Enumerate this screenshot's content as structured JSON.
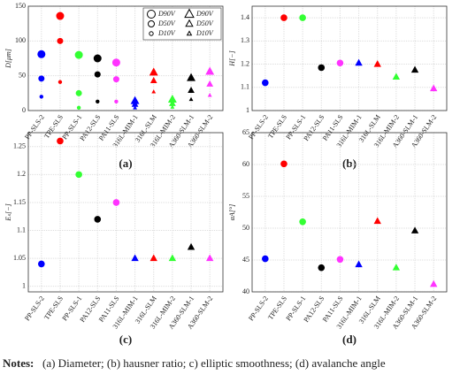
{
  "chart_data": [
    {
      "type": "scatter",
      "caption": "(a)",
      "ylabel": "D[μm]",
      "categories": [
        "PP-SLS-2",
        "TPE-SLS",
        "PP-SLS-1",
        "PA12-SLS",
        "PA11-SLS",
        "316L-MIM-1",
        "316L-SLM",
        "316L-MIM-2",
        "A360-SLM-1",
        "A360-SLM-2"
      ],
      "colors": [
        "#0000ff",
        "#ff0000",
        "#33ff33",
        "#000000",
        "#ff33ff",
        "#0000ff",
        "#ff0000",
        "#33ff33",
        "#000000",
        "#ff33ff"
      ],
      "markers": [
        "circle",
        "circle",
        "circle",
        "circle",
        "circle",
        "triangle",
        "triangle",
        "triangle",
        "triangle",
        "triangle"
      ],
      "series": [
        {
          "name": "D90V",
          "values": [
            81,
            136,
            80,
            75,
            69,
            14,
            55,
            16,
            47,
            56
          ]
        },
        {
          "name": "D50V",
          "values": [
            46,
            100,
            25,
            52,
            45,
            9,
            43,
            10,
            29,
            38
          ]
        },
        {
          "name": "D10V",
          "values": [
            20,
            41,
            4,
            13,
            13,
            4,
            27,
            5,
            16,
            22
          ]
        }
      ],
      "triangle_legend": [
        "D90V",
        "D50V",
        "D10V"
      ],
      "ylim": [
        0,
        150
      ],
      "yticks": [
        0,
        50,
        100,
        150
      ],
      "grid": true
    },
    {
      "type": "scatter",
      "caption": "(b)",
      "ylabel": "H[−]",
      "categories": [
        "PP-SLS-2",
        "TPE-SLS",
        "PP-SLS-1",
        "PA12-SLS",
        "PA11-SLS",
        "316L-MIM-1",
        "316L-SLM",
        "316L-MIM-2",
        "A360-SLM-1",
        "A360-SLM-2"
      ],
      "colors": [
        "#0000ff",
        "#ff0000",
        "#33ff33",
        "#000000",
        "#ff33ff",
        "#0000ff",
        "#ff0000",
        "#33ff33",
        "#000000",
        "#ff33ff"
      ],
      "markers": [
        "circle",
        "circle",
        "circle",
        "circle",
        "circle",
        "triangle",
        "triangle",
        "triangle",
        "triangle",
        "triangle"
      ],
      "series": [
        {
          "values": [
            1.12,
            1.4,
            1.4,
            1.185,
            1.205,
            1.205,
            1.2,
            1.145,
            1.175,
            1.095
          ]
        }
      ],
      "ylim": [
        1,
        1.45
      ],
      "yticks": [
        1,
        1.1,
        1.2,
        1.3,
        1.4
      ],
      "grid": true
    },
    {
      "type": "scatter",
      "caption": "(c)",
      "ylabel": "Eₛ[−]",
      "categories": [
        "PP-SLS-2",
        "TPE-SLS",
        "PP-SLS-1",
        "PA12-SLS",
        "PA11-SLS",
        "316L-MIM-1",
        "316L-SLM",
        "316L-MIM-2",
        "A360-SLM-1",
        "A360-SLM-2"
      ],
      "colors": [
        "#0000ff",
        "#ff0000",
        "#33ff33",
        "#000000",
        "#ff33ff",
        "#0000ff",
        "#ff0000",
        "#33ff33",
        "#000000",
        "#ff33ff"
      ],
      "markers": [
        "circle",
        "circle",
        "circle",
        "circle",
        "circle",
        "triangle",
        "triangle",
        "triangle",
        "triangle",
        "triangle"
      ],
      "series": [
        {
          "values": [
            1.04,
            1.26,
            1.2,
            1.12,
            1.15,
            1.05,
            1.05,
            1.05,
            1.07,
            1.05
          ]
        }
      ],
      "ylim": [
        0.99,
        1.275
      ],
      "yticks": [
        1,
        1.05,
        1.1,
        1.15,
        1.2,
        1.25
      ],
      "grid": true
    },
    {
      "type": "scatter",
      "caption": "(d)",
      "ylabel": "αA[°]",
      "categories": [
        "PP-SLS-2",
        "TPE-SLS",
        "PP-SLS-1",
        "PA12-SLS",
        "PA11-SLS",
        "316L-MIM-1",
        "316L-SLM",
        "316L-MIM-2",
        "A360-SLM-1",
        "A360-SLM-2"
      ],
      "colors": [
        "#0000ff",
        "#ff0000",
        "#33ff33",
        "#000000",
        "#ff33ff",
        "#0000ff",
        "#ff0000",
        "#33ff33",
        "#000000",
        "#ff33ff"
      ],
      "markers": [
        "circle",
        "circle",
        "circle",
        "circle",
        "circle",
        "triangle",
        "triangle",
        "triangle",
        "triangle",
        "triangle"
      ],
      "series": [
        {
          "values": [
            45.2,
            60.1,
            51,
            43.8,
            45.1,
            44.3,
            51.1,
            43.8,
            49.6,
            41.2
          ]
        }
      ],
      "ylim": [
        40,
        65
      ],
      "yticks": [
        40,
        45,
        50,
        55,
        60,
        65
      ],
      "grid": true
    }
  ],
  "notes": {
    "label": "Notes:",
    "text": "(a) Diameter; (b) hausner ratio; c) elliptic smoothness; (d) avalanche angle"
  }
}
